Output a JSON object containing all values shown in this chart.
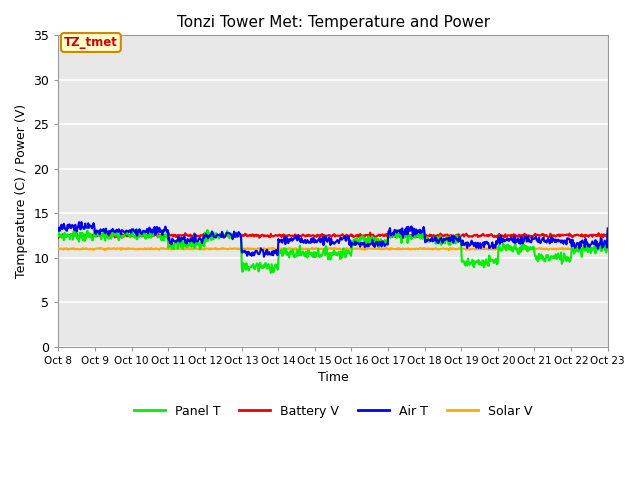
{
  "title": "Tonzi Tower Met: Temperature and Power",
  "xlabel": "Time",
  "ylabel": "Temperature (C) / Power (V)",
  "ylim": [
    0,
    35
  ],
  "yticks": [
    0,
    5,
    10,
    15,
    20,
    25,
    30,
    35
  ],
  "xtick_labels": [
    "Oct 8",
    "Oct 9",
    "Oct 10",
    "Oct 11",
    "Oct 12",
    "Oct 13",
    "Oct 14",
    "Oct 15",
    "Oct 16",
    "Oct 17",
    "Oct 18",
    "Oct 19",
    "Oct 20",
    "Oct 21",
    "Oct 22",
    "Oct 23"
  ],
  "annotation_text": "TZ_tmet",
  "colors": {
    "panel_t": "#00ee00",
    "battery_v": "#ee0000",
    "air_t": "#0000ee",
    "solar_v": "#ffaa00"
  },
  "legend_labels": [
    "Panel T",
    "Battery V",
    "Air T",
    "Solar V"
  ],
  "bg_color": "#e8e8e8",
  "grid_color": "white",
  "line_width": 1.5
}
